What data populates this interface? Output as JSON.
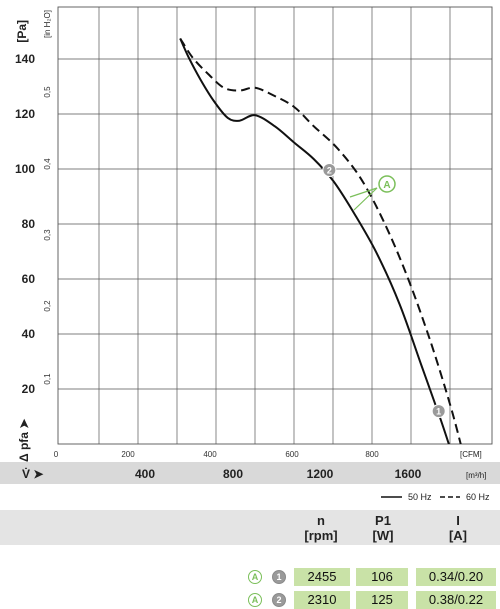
{
  "chart_data": {
    "type": "line",
    "y_left": {
      "label": "Δ pfa ➤",
      "unit": "[Pa]",
      "ticks": [
        "20",
        "40",
        "60",
        "80",
        "100",
        "120",
        "140"
      ],
      "range": [
        0,
        150
      ]
    },
    "y_right": {
      "unit": "[in H₂O]",
      "ticks": [
        "0,1",
        "0,2",
        "0,3",
        "0,4",
        "0,5"
      ]
    },
    "x_top": {
      "unit": "[CFM]",
      "ticks": [
        "0",
        "200",
        "400",
        "600",
        "800"
      ],
      "range": [
        0,
        1030
      ]
    },
    "x_bottom": {
      "label": "V̇ ➤",
      "unit": "[m³/h]",
      "ticks": [
        "400",
        "800",
        "1200",
        "1600"
      ]
    },
    "series": [
      {
        "name": "50 Hz",
        "style": "solid",
        "x_cfm": [
          318,
          340,
          370,
          405,
          440,
          470,
          510,
          560,
          610,
          660,
          710,
          760,
          820,
          880,
          935,
          985,
          1015
        ],
        "y_pa": [
          148,
          141,
          133,
          125,
          119,
          118,
          120,
          116,
          110,
          104,
          96,
          85,
          70,
          51,
          29,
          9,
          -4
        ]
      },
      {
        "name": "60 Hz",
        "style": "dashed",
        "x_cfm": [
          318,
          350,
          390,
          430,
          470,
          510,
          560,
          610,
          660,
          720,
          780,
          840,
          900,
          960,
          1010,
          1040
        ],
        "y_pa": [
          148,
          141,
          135,
          130,
          129,
          130,
          127,
          123,
          116,
          108,
          97,
          81,
          61,
          37,
          14,
          -2
        ]
      }
    ],
    "markers": [
      {
        "label": "1",
        "x_cfm": 980,
        "y_pa": 12
      },
      {
        "label": "2",
        "x_cfm": 700,
        "y_pa": 100
      }
    ],
    "curve_label": "A",
    "legend": [
      {
        "label": "50 Hz",
        "style": "solid"
      },
      {
        "label": "60 Hz",
        "style": "dashed"
      }
    ],
    "grid": true
  },
  "table": {
    "headers": [
      {
        "symbol": "n",
        "unit": "[rpm]"
      },
      {
        "symbol": "P1",
        "unit": "[W]"
      },
      {
        "symbol": "I",
        "unit": "[A]"
      }
    ],
    "rows": [
      {
        "curve": "A",
        "point": "1",
        "n": "2455",
        "p1": "106",
        "i": "0.34/0.20"
      },
      {
        "curve": "A",
        "point": "2",
        "n": "2310",
        "p1": "125",
        "i": "0.38/0.22"
      }
    ]
  },
  "colors": {
    "accent_green": "#7bbf5a",
    "cell_green": "#c9e2a7",
    "marker_gray": "#9a9a9a",
    "header_gray": "#e4e4e4",
    "axis_band_gray": "#d9d9d9"
  }
}
